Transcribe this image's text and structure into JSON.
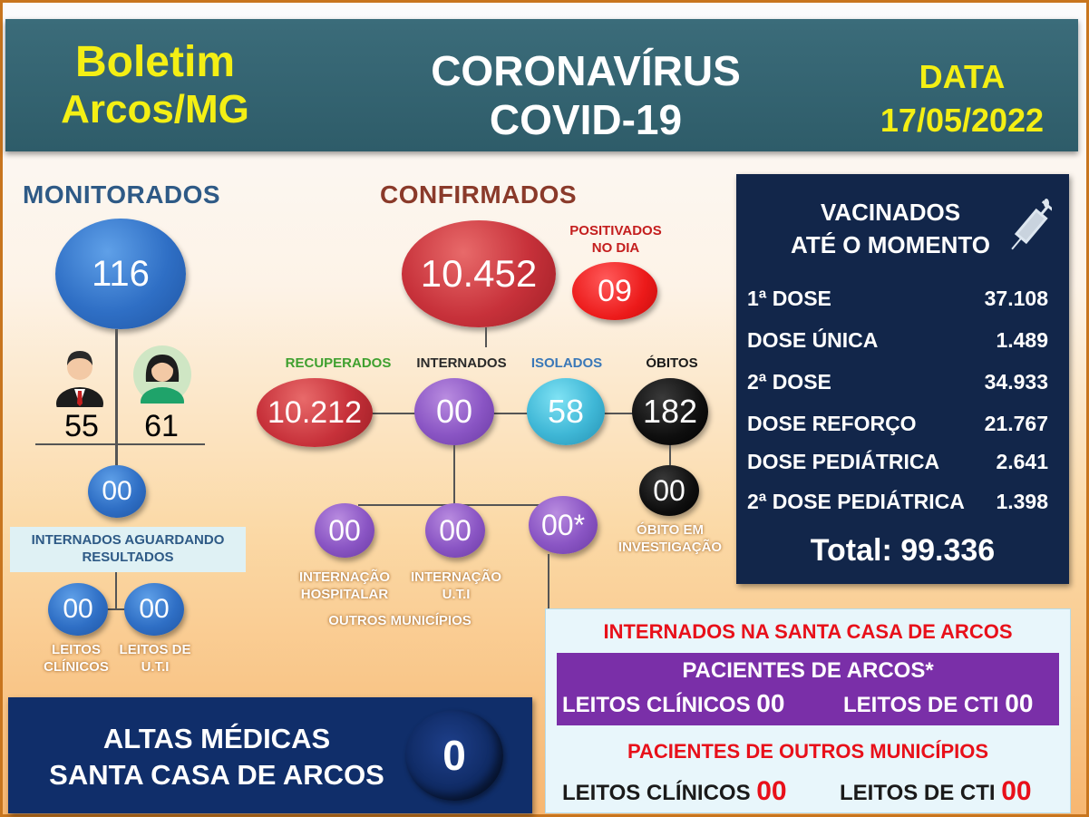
{
  "header": {
    "boletim": "Boletim",
    "city": "Arcos/MG",
    "title_line1": "CORONAVÍRUS",
    "title_line2": "COVID-19",
    "date_label": "DATA",
    "date_value": "17/05/2022"
  },
  "monitorados": {
    "title": "MONITORADOS",
    "total": "116",
    "male": "55",
    "female": "61",
    "internados_aguardando": "00",
    "internados_label": "INTERNADOS AGUARDANDO RESULTADOS",
    "leitos_clinicos": "00",
    "leitos_uti": "00",
    "leitos_clinicos_label": "LEITOS CLÍNICOS",
    "leitos_uti_label": "LEITOS DE U.T.I"
  },
  "confirmados": {
    "title": "CONFIRMADOS",
    "total": "10.452",
    "positivados_label": "POSITIVADOS NO DIA",
    "positivados": "09",
    "recuperados_label": "RECUPERADOS",
    "recuperados": "10.212",
    "internados_label": "INTERNADOS",
    "internados": "00",
    "isolados_label": "ISOLADOS",
    "isolados": "58",
    "obitos_label": "ÓBITOS",
    "obitos": "182",
    "obito_investigacao": "00",
    "obito_investigacao_label": "ÓBITO EM INVESTIGAÇÃO",
    "internacao_hospitalar": "00",
    "internacao_hospitalar_label": "INTERNAÇÃO HOSPITALAR",
    "internacao_uti": "00",
    "internacao_uti_label": "INTERNAÇÃO U.T.I",
    "outros": "00*",
    "outros_label": "OUTROS MUNICÍPIOS"
  },
  "vacinados": {
    "title_line1": "VACINADOS",
    "title_line2": "ATÉ O MOMENTO",
    "rows": [
      {
        "label": "1ª DOSE",
        "value": "37.108"
      },
      {
        "label": "DOSE ÚNICA",
        "value": "1.489"
      },
      {
        "label": "2ª DOSE",
        "value": "34.933"
      },
      {
        "label": "DOSE REFORÇO",
        "value": "21.767"
      },
      {
        "label": "DOSE PEDIÁTRICA",
        "value": "2.641"
      },
      {
        "label": "2ª DOSE PEDIÁTRICA",
        "value": "1.398"
      }
    ],
    "total": "Total: 99.336"
  },
  "santa_casa": {
    "title": "INTERNADOS NA SANTA CASA DE ARCOS",
    "arcos_title": "PACIENTES DE ARCOS*",
    "leitos_clinicos_label": "LEITOS CLÍNICOS",
    "arcos_clinicos": "00",
    "leitos_cti_label": "LEITOS DE CTI",
    "arcos_cti": "00",
    "outros_title": "PACIENTES DE OUTROS MUNICÍPIOS",
    "outros_clinicos": "00",
    "outros_cti": "00"
  },
  "altas": {
    "line1": "ALTAS MÉDICAS",
    "line2": "SANTA CASA DE ARCOS",
    "value": "0"
  },
  "colors": {
    "header_bg": "#2e5c69",
    "yellow": "#f4ef14",
    "vac_bg": "#12264a",
    "red_text": "#e8101a",
    "purple_box": "#7a2fa8"
  }
}
